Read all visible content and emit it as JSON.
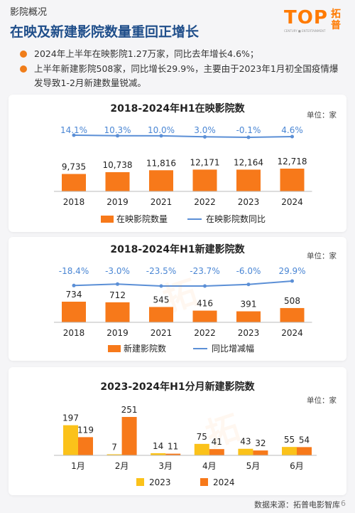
{
  "header": {
    "section": "影院概况",
    "headline": "在映及新建影院数量重回正增长",
    "logo_text": "TOP",
    "logo_cn": "拓普",
    "logo_tagline": "CENTURY ■ ENTERTAINMENT"
  },
  "bullets": [
    "2024年上半年在映影院1.27万家，同比去年增长4.6%；",
    "上半年新建影院508家，同比增长29.9%，主要由于2023年1月初全国疫情爆发导致1-2月新建数量锐减。"
  ],
  "colors": {
    "bar_orange": "#f7791a",
    "line_blue": "#5b8fd6",
    "label_blue": "#4a86d4",
    "bar_yellow": "#fbc21a",
    "title_blue": "#1f4e8a"
  },
  "chart_data": [
    {
      "type": "bar",
      "title": "2018-2024年H1在映影院数",
      "unit": "单位：家",
      "categories": [
        "2018",
        "2019",
        "2021",
        "2022",
        "2023",
        "2024"
      ],
      "series": [
        {
          "name": "在映影院数量",
          "type": "bar",
          "values": [
            9735,
            10738,
            11816,
            12171,
            12164,
            12718
          ],
          "labels": [
            "9,735",
            "10,738",
            "11,816",
            "12,171",
            "12,164",
            "12,718"
          ]
        },
        {
          "name": "在映影院数同比",
          "type": "line",
          "values": [
            14.1,
            10.3,
            10.0,
            3.0,
            -0.1,
            4.6
          ],
          "labels": [
            "14.1%",
            "10.3%",
            "10.0%",
            "3.0%",
            "-0.1%",
            "4.6%"
          ]
        }
      ],
      "legend": "bottom"
    },
    {
      "type": "bar",
      "title": "2018-2024年H1新建影院数",
      "unit": "单位：家",
      "categories": [
        "2018",
        "2019",
        "2021",
        "2022",
        "2023",
        "2024"
      ],
      "series": [
        {
          "name": "新建影院数",
          "type": "bar",
          "values": [
            734,
            712,
            545,
            416,
            391,
            508
          ],
          "labels": [
            "734",
            "712",
            "545",
            "416",
            "391",
            "508"
          ]
        },
        {
          "name": "同比增减幅",
          "type": "line",
          "values": [
            -18.4,
            -3.0,
            -23.5,
            -23.7,
            -6.0,
            29.9
          ],
          "labels": [
            "-18.4%",
            "-3.0%",
            "-23.5%",
            "-23.7%",
            "-6.0%",
            "29.9%"
          ]
        }
      ],
      "legend": "bottom"
    },
    {
      "type": "bar",
      "title": "2023-2024年H1分月新建影院数",
      "unit": "单位：家",
      "categories": [
        "1月",
        "2月",
        "3月",
        "4月",
        "5月",
        "6月"
      ],
      "series": [
        {
          "name": "2023",
          "values": [
            197,
            7,
            14,
            75,
            43,
            55
          ]
        },
        {
          "name": "2024",
          "values": [
            119,
            251,
            11,
            41,
            32,
            54
          ]
        }
      ],
      "legend": "bottom"
    }
  ],
  "footer": {
    "source": "数据来源：拓普电影智库",
    "page": "6"
  }
}
